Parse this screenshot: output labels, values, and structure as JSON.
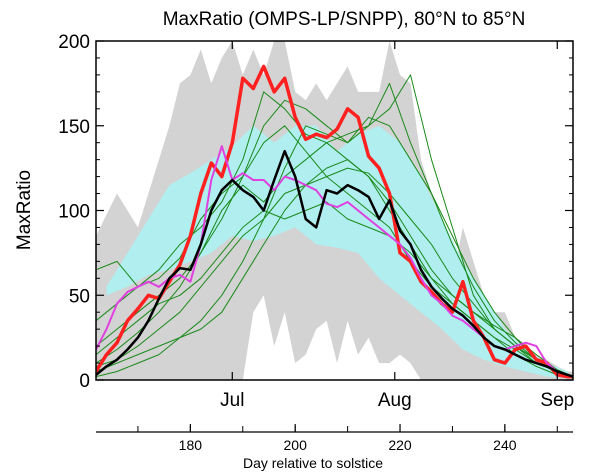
{
  "chart_data": {
    "type": "line",
    "title": "MaxRatio (OMPS-LP/SNPP), 80°N to 85°N",
    "ylabel": "MaxRatio",
    "xlabel": "Day relative to solstice",
    "ylim": [
      0,
      200
    ],
    "xlim": [
      162,
      253
    ],
    "y_ticks": [
      0,
      50,
      100,
      150,
      200
    ],
    "month_ticks": [
      {
        "label": "Jul",
        "day": 188
      },
      {
        "label": "Aug",
        "day": 219
      },
      {
        "label": "Sep",
        "day": 250
      }
    ],
    "day_ticks": [
      180,
      200,
      220,
      240
    ],
    "grid": false,
    "bands": [
      {
        "name": "min-max range",
        "color": "#d3d3d3",
        "x": [
          162,
          166,
          170,
          174,
          176,
          178,
          180,
          182,
          184,
          186,
          188,
          190,
          192,
          194,
          196,
          198,
          200,
          202,
          204,
          206,
          208,
          210,
          212,
          214,
          216,
          218,
          220,
          222,
          224,
          226,
          228,
          230,
          232,
          234,
          236,
          238,
          240,
          242,
          244,
          246,
          248,
          250,
          252,
          253
        ],
        "upper": [
          85,
          110,
          90,
          130,
          150,
          175,
          180,
          195,
          175,
          190,
          200,
          180,
          195,
          180,
          200,
          200,
          170,
          165,
          175,
          165,
          175,
          185,
          170,
          170,
          170,
          200,
          180,
          175,
          130,
          110,
          90,
          60,
          90,
          70,
          50,
          40,
          40,
          25,
          20,
          15,
          12,
          8,
          5,
          5
        ],
        "lower": [
          0,
          0,
          0,
          0,
          0,
          0,
          0,
          0,
          0,
          0,
          0,
          0,
          40,
          50,
          20,
          40,
          10,
          15,
          30,
          35,
          10,
          35,
          15,
          25,
          10,
          10,
          15,
          10,
          0,
          0,
          0,
          0,
          0,
          0,
          0,
          0,
          0,
          0,
          0,
          0,
          0,
          0,
          0,
          0
        ]
      },
      {
        "name": "inner range",
        "color": "#b0eef0",
        "x": [
          164,
          168,
          172,
          176,
          180,
          184,
          188,
          192,
          196,
          200,
          204,
          208,
          212,
          216,
          220,
          224,
          228,
          232,
          236,
          240,
          244,
          248,
          252
        ],
        "upper": [
          55,
          75,
          95,
          115,
          122,
          130,
          138,
          150,
          140,
          150,
          150,
          135,
          145,
          150,
          140,
          120,
          95,
          70,
          50,
          30,
          18,
          10,
          5
        ],
        "lower": [
          50,
          55,
          62,
          65,
          70,
          75,
          85,
          82,
          85,
          90,
          80,
          78,
          75,
          60,
          50,
          40,
          30,
          18,
          12,
          8,
          5,
          2,
          1
        ]
      }
    ],
    "series": [
      {
        "name": "",
        "color": "#ff2020",
        "width": 3.5,
        "x": [
          162,
          164,
          166,
          168,
          170,
          172,
          174,
          176,
          178,
          180,
          182,
          184,
          186,
          188,
          190,
          192,
          194,
          196,
          198,
          200,
          202,
          204,
          206,
          208,
          210,
          212,
          214,
          216,
          218,
          220,
          222,
          224,
          226,
          228,
          230,
          232,
          234,
          236,
          238,
          240,
          242,
          244,
          246,
          248,
          250,
          252,
          253
        ],
        "values": [
          5,
          15,
          22,
          35,
          42,
          50,
          48,
          58,
          68,
          85,
          110,
          128,
          120,
          140,
          178,
          172,
          185,
          170,
          178,
          155,
          142,
          145,
          143,
          148,
          160,
          155,
          132,
          125,
          110,
          75,
          70,
          58,
          52,
          45,
          40,
          58,
          35,
          25,
          12,
          10,
          18,
          20,
          12,
          10,
          3,
          2,
          2
        ]
      },
      {
        "name": "",
        "color": "#e040e0",
        "width": 2,
        "x": [
          162,
          164,
          166,
          168,
          170,
          172,
          174,
          176,
          178,
          180,
          182,
          184,
          186,
          188,
          190,
          192,
          194,
          196,
          198,
          200,
          202,
          204,
          206,
          208,
          210,
          212,
          214,
          216,
          218,
          220,
          222,
          224,
          226,
          228,
          230,
          232,
          234,
          236,
          238,
          240,
          242,
          244,
          246,
          248,
          250,
          252
        ],
        "values": [
          18,
          30,
          45,
          52,
          55,
          58,
          55,
          60,
          62,
          58,
          80,
          118,
          138,
          118,
          122,
          118,
          118,
          112,
          120,
          118,
          115,
          112,
          104,
          102,
          105,
          100,
          95,
          90,
          85,
          80,
          72,
          60,
          50,
          45,
          38,
          35,
          30,
          25,
          20,
          18,
          20,
          22,
          20,
          10,
          5,
          3
        ]
      },
      {
        "name": "",
        "color": "#000000",
        "width": 2.5,
        "x": [
          162,
          164,
          166,
          168,
          170,
          172,
          174,
          176,
          178,
          180,
          182,
          184,
          186,
          188,
          190,
          192,
          194,
          196,
          198,
          200,
          202,
          204,
          206,
          208,
          210,
          212,
          214,
          216,
          218,
          220,
          222,
          224,
          226,
          228,
          230,
          232,
          234,
          236,
          238,
          240,
          242,
          244,
          246,
          248,
          250,
          252,
          253
        ],
        "values": [
          3,
          8,
          12,
          18,
          25,
          35,
          48,
          60,
          66,
          65,
          80,
          100,
          112,
          118,
          112,
          108,
          100,
          118,
          135,
          120,
          95,
          90,
          112,
          110,
          115,
          112,
          108,
          95,
          106,
          88,
          80,
          65,
          55,
          48,
          42,
          38,
          32,
          25,
          20,
          18,
          15,
          12,
          10,
          8,
          5,
          3,
          2
        ]
      },
      {
        "name": "",
        "color": "#1a8a1a",
        "width": 1,
        "x": [
          162,
          166,
          170,
          174,
          178,
          182,
          186,
          190,
          194,
          198,
          202,
          206,
          210,
          214,
          218,
          222,
          226,
          230,
          234,
          238,
          242,
          246,
          250,
          253
        ],
        "values": [
          65,
          70,
          55,
          60,
          72,
          95,
          110,
          120,
          150,
          165,
          160,
          150,
          140,
          155,
          150,
          130,
          110,
          85,
          60,
          40,
          25,
          12,
          5,
          2
        ]
      },
      {
        "name": "",
        "color": "#1a8a1a",
        "width": 1,
        "x": [
          162,
          166,
          170,
          174,
          178,
          182,
          186,
          190,
          194,
          198,
          202,
          206,
          210,
          214,
          218,
          222,
          226,
          230,
          234,
          238,
          242,
          246,
          250,
          253
        ],
        "values": [
          35,
          45,
          55,
          65,
          80,
          90,
          105,
          130,
          170,
          160,
          145,
          140,
          130,
          120,
          105,
          85,
          65,
          50,
          40,
          30,
          20,
          12,
          5,
          2
        ]
      },
      {
        "name": "",
        "color": "#1a8a1a",
        "width": 1,
        "x": [
          162,
          166,
          170,
          174,
          178,
          182,
          186,
          190,
          194,
          198,
          202,
          206,
          210,
          214,
          218,
          222,
          226,
          230,
          234,
          238,
          242,
          246,
          250,
          253
        ],
        "values": [
          20,
          30,
          40,
          50,
          60,
          75,
          95,
          120,
          140,
          150,
          135,
          120,
          110,
          100,
          90,
          70,
          55,
          45,
          35,
          25,
          18,
          10,
          5,
          2
        ]
      },
      {
        "name": "",
        "color": "#1a8a1a",
        "width": 1,
        "x": [
          162,
          166,
          170,
          174,
          178,
          182,
          186,
          190,
          194,
          198,
          202,
          206,
          210,
          214,
          218,
          222,
          226,
          230,
          234,
          238,
          242,
          246,
          250,
          253
        ],
        "values": [
          10,
          18,
          28,
          40,
          55,
          75,
          100,
          115,
          105,
          120,
          130,
          140,
          145,
          150,
          160,
          180,
          130,
          90,
          50,
          30,
          20,
          12,
          6,
          2
        ]
      },
      {
        "name": "",
        "color": "#1a8a1a",
        "width": 1,
        "x": [
          162,
          166,
          170,
          174,
          178,
          182,
          186,
          190,
          194,
          198,
          202,
          206,
          210,
          214,
          218,
          222,
          226,
          230,
          234,
          238,
          242,
          246,
          250,
          253
        ],
        "values": [
          8,
          12,
          20,
          30,
          40,
          55,
          70,
          85,
          95,
          110,
          115,
          120,
          125,
          122,
          110,
          95,
          80,
          60,
          45,
          30,
          20,
          10,
          5,
          2
        ]
      },
      {
        "name": "",
        "color": "#1a8a1a",
        "width": 1,
        "x": [
          162,
          166,
          170,
          174,
          178,
          182,
          186,
          190,
          194,
          198,
          202,
          206,
          210,
          214,
          218,
          222,
          226,
          230,
          234,
          238,
          242,
          246,
          250,
          253
        ],
        "values": [
          15,
          25,
          35,
          45,
          50,
          60,
          75,
          90,
          100,
          95,
          100,
          105,
          95,
          90,
          85,
          75,
          60,
          45,
          35,
          25,
          15,
          8,
          3,
          1
        ]
      },
      {
        "name": "",
        "color": "#1a8a1a",
        "width": 1,
        "x": [
          162,
          166,
          170,
          174,
          178,
          182,
          186,
          190,
          194,
          198,
          202,
          206,
          210,
          214,
          218,
          222,
          226,
          230,
          234,
          238,
          242,
          246,
          250,
          253
        ],
        "values": [
          5,
          10,
          15,
          20,
          25,
          30,
          40,
          60,
          80,
          100,
          115,
          125,
          130,
          120,
          100,
          80,
          60,
          50,
          40,
          32,
          25,
          15,
          6,
          2
        ]
      },
      {
        "name": "",
        "color": "#1a8a1a",
        "width": 1,
        "x": [
          162,
          166,
          170,
          174,
          178,
          182,
          186,
          190,
          194,
          198,
          202,
          206,
          210,
          214,
          218,
          222,
          226,
          230,
          234,
          238,
          242,
          246,
          250,
          253
        ],
        "values": [
          2,
          5,
          10,
          15,
          25,
          35,
          50,
          70,
          95,
          125,
          150,
          145,
          140,
          150,
          175,
          140,
          110,
          80,
          55,
          35,
          22,
          12,
          5,
          1
        ]
      }
    ]
  }
}
